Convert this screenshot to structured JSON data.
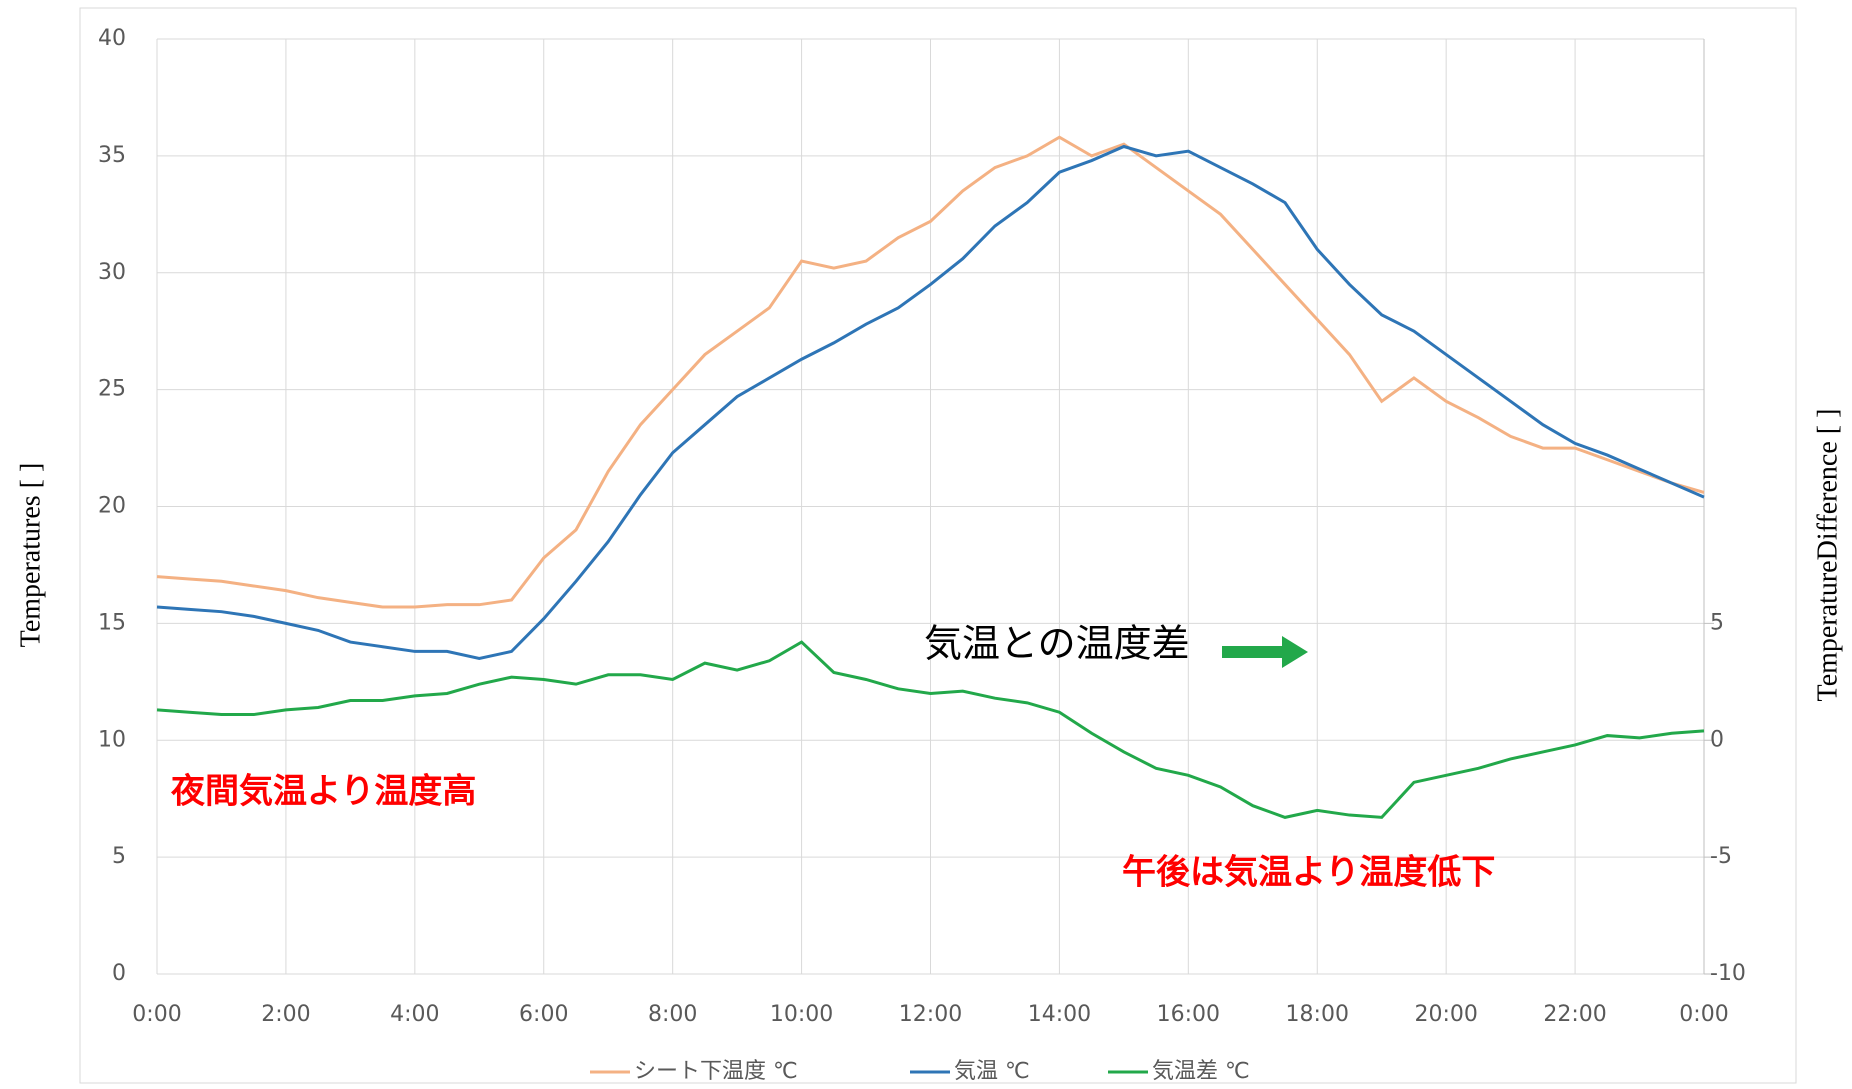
{
  "chart_data": {
    "type": "line",
    "ylabel": "Temperatures [ ]",
    "y2label": "TemperatureDifference [ ]",
    "annotations": [
      "夜間気温より温度高",
      "午後は気温より温度低下",
      "気温との温度差"
    ],
    "x": [
      0,
      0.5,
      1,
      1.5,
      2,
      2.5,
      3,
      3.5,
      4,
      4.5,
      5,
      5.5,
      6,
      6.5,
      7,
      7.5,
      8,
      8.5,
      9,
      9.5,
      10,
      10.5,
      11,
      11.5,
      12,
      12.5,
      13,
      13.5,
      14,
      14.5,
      15,
      15.5,
      16,
      16.5,
      17,
      17.5,
      18,
      18.5,
      19,
      19.5,
      20,
      20.5,
      21,
      21.5,
      22,
      22.5,
      23,
      23.5,
      24
    ],
    "xlim": [
      0,
      24
    ],
    "xticks": [
      {
        "value": 0,
        "label": "0:00"
      },
      {
        "value": 2,
        "label": "2:00"
      },
      {
        "value": 4,
        "label": "4:00"
      },
      {
        "value": 6,
        "label": "6:00"
      },
      {
        "value": 8,
        "label": "8:00"
      },
      {
        "value": 10,
        "label": "10:00"
      },
      {
        "value": 12,
        "label": "12:00"
      },
      {
        "value": 14,
        "label": "14:00"
      },
      {
        "value": 16,
        "label": "16:00"
      },
      {
        "value": 18,
        "label": "18:00"
      },
      {
        "value": 20,
        "label": "20:00"
      },
      {
        "value": 22,
        "label": "22:00"
      },
      {
        "value": 24,
        "label": "0:00"
      }
    ],
    "ylim": [
      0,
      40
    ],
    "yticks": [
      0,
      5,
      10,
      15,
      20,
      25,
      30,
      35,
      40
    ],
    "y2lim": [
      -10,
      30
    ],
    "y2ticks": [
      -10,
      -5,
      0,
      5
    ],
    "grid": true,
    "legend": "bottom",
    "series": [
      {
        "name": "シート下温度 ℃",
        "color": "#f4b183",
        "values": [
          17.0,
          16.9,
          16.8,
          16.6,
          16.4,
          16.1,
          15.9,
          15.7,
          15.7,
          15.8,
          15.8,
          16.0,
          17.8,
          19.0,
          21.5,
          23.5,
          25.0,
          26.5,
          27.5,
          28.5,
          30.5,
          30.2,
          30.5,
          31.5,
          32.2,
          33.5,
          34.5,
          35.0,
          35.8,
          35.0,
          35.5,
          34.5,
          33.5,
          32.5,
          31.0,
          29.5,
          28.0,
          26.5,
          24.5,
          25.5,
          24.5,
          23.8,
          23.0,
          22.5,
          22.5,
          22.0,
          21.5,
          21.0,
          20.6
        ]
      },
      {
        "name": "気温 ℃",
        "color": "#2e75b6",
        "values": [
          15.7,
          15.6,
          15.5,
          15.3,
          15.0,
          14.7,
          14.2,
          14.0,
          13.8,
          13.8,
          13.5,
          13.8,
          15.2,
          16.8,
          18.5,
          20.5,
          22.3,
          23.5,
          24.7,
          25.5,
          26.3,
          27.0,
          27.8,
          28.5,
          29.5,
          30.6,
          32.0,
          33.0,
          34.3,
          34.8,
          35.4,
          35.0,
          35.2,
          34.5,
          33.8,
          33.0,
          31.0,
          29.5,
          28.2,
          27.5,
          26.5,
          25.5,
          24.5,
          23.5,
          22.7,
          22.2,
          21.6,
          21.0,
          20.4
        ]
      },
      {
        "name": "気温差 ℃",
        "color": "#22a84a",
        "axis": "y2",
        "values": [
          1.3,
          1.2,
          1.1,
          1.1,
          1.3,
          1.4,
          1.7,
          1.7,
          1.9,
          2.0,
          2.4,
          2.7,
          2.6,
          2.4,
          2.8,
          2.8,
          2.6,
          3.3,
          3.0,
          3.4,
          4.2,
          2.9,
          2.6,
          2.2,
          2.0,
          2.1,
          1.8,
          1.6,
          1.2,
          0.3,
          -0.5,
          -1.2,
          -1.5,
          -2.0,
          -2.8,
          -3.3,
          -3.0,
          -3.2,
          -3.3,
          -1.8,
          -1.5,
          -1.2,
          -0.8,
          -0.5,
          -0.2,
          0.2,
          0.1,
          0.3,
          0.4
        ]
      }
    ]
  }
}
